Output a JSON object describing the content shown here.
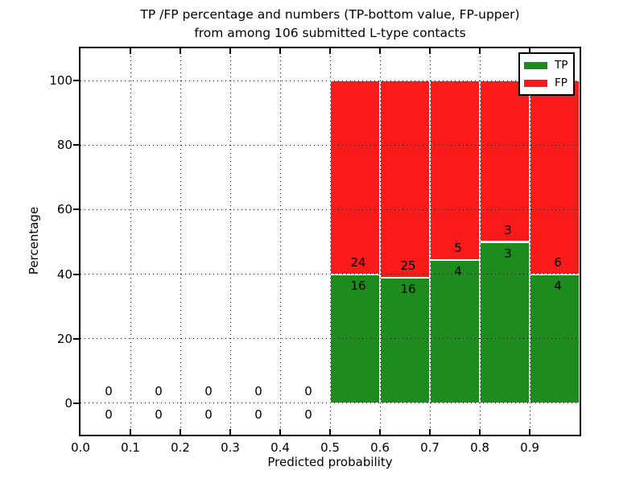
{
  "title": {
    "line1": "TP /FP percentage and numbers (TP-bottom value, FP-upper)",
    "line2": "from among 106 submitted L-type contacts"
  },
  "axes": {
    "xlabel": "Predicted probability",
    "ylabel": "Percentage",
    "xlim": [
      0.0,
      1.0
    ],
    "ylim": [
      -9.75,
      110.0
    ],
    "x_ticks": [
      {
        "label": "0.0",
        "v": 0.0
      },
      {
        "label": "0.1",
        "v": 0.1
      },
      {
        "label": "0.2",
        "v": 0.2
      },
      {
        "label": "0.3",
        "v": 0.3
      },
      {
        "label": "0.4",
        "v": 0.4
      },
      {
        "label": "0.5",
        "v": 0.5
      },
      {
        "label": "0.6",
        "v": 0.6
      },
      {
        "label": "0.7",
        "v": 0.7
      },
      {
        "label": "0.8",
        "v": 0.8
      },
      {
        "label": "0.9",
        "v": 0.9
      }
    ],
    "y_ticks": [
      {
        "label": "0",
        "v": 0
      },
      {
        "label": "20",
        "v": 20
      },
      {
        "label": "40",
        "v": 40
      },
      {
        "label": "60",
        "v": 60
      },
      {
        "label": "80",
        "v": 80
      },
      {
        "label": "100",
        "v": 100
      }
    ],
    "grid": "dotted"
  },
  "legend": {
    "position": "upper-right",
    "items": [
      {
        "label": "TP",
        "color": "#1e8b1e"
      },
      {
        "label": "FP",
        "color": "#fa1a1a"
      }
    ]
  },
  "chart_data": {
    "type": "bar",
    "stacked": true,
    "title": "TP /FP percentage and numbers (TP-bottom value, FP-upper) from among 106 submitted L-type contacts",
    "xlabel": "Predicted probability",
    "ylabel": "Percentage",
    "total_contacts": 106,
    "colors": {
      "tp": "#1e8b1e",
      "fp": "#fa1a1a",
      "bar_edge": "#ffffff"
    },
    "bins": [
      {
        "range": [
          0.0,
          0.1
        ],
        "tp_count": 0,
        "fp_count": 0,
        "tp_pct": 0,
        "fp_pct": 0
      },
      {
        "range": [
          0.1,
          0.2
        ],
        "tp_count": 0,
        "fp_count": 0,
        "tp_pct": 0,
        "fp_pct": 0
      },
      {
        "range": [
          0.2,
          0.3
        ],
        "tp_count": 0,
        "fp_count": 0,
        "tp_pct": 0,
        "fp_pct": 0
      },
      {
        "range": [
          0.3,
          0.4
        ],
        "tp_count": 0,
        "fp_count": 0,
        "tp_pct": 0,
        "fp_pct": 0
      },
      {
        "range": [
          0.4,
          0.5
        ],
        "tp_count": 0,
        "fp_count": 0,
        "tp_pct": 0,
        "fp_pct": 0
      },
      {
        "range": [
          0.5,
          0.6
        ],
        "tp_count": 16,
        "fp_count": 24,
        "tp_pct": 40.0,
        "fp_pct": 60.0
      },
      {
        "range": [
          0.6,
          0.7
        ],
        "tp_count": 16,
        "fp_count": 25,
        "tp_pct": 39.02,
        "fp_pct": 60.98
      },
      {
        "range": [
          0.7,
          0.8
        ],
        "tp_count": 4,
        "fp_count": 5,
        "tp_pct": 44.44,
        "fp_pct": 55.56
      },
      {
        "range": [
          0.8,
          0.9
        ],
        "tp_count": 3,
        "fp_count": 3,
        "tp_pct": 50.0,
        "fp_pct": 50.0
      },
      {
        "range": [
          0.9,
          1.0
        ],
        "tp_count": 4,
        "fp_count": 6,
        "tp_pct": 40.0,
        "fp_pct": 60.0
      }
    ]
  }
}
